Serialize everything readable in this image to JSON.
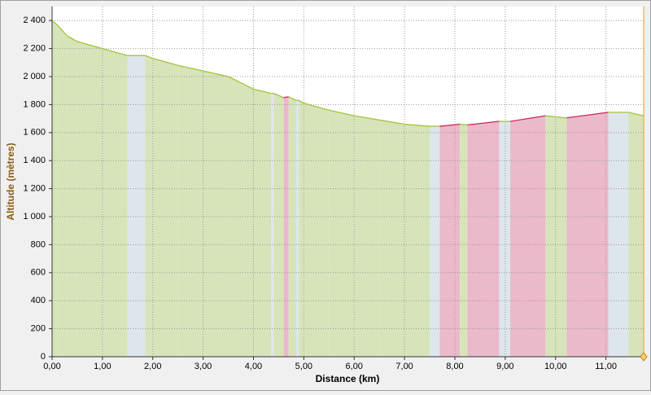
{
  "chart_data": {
    "type": "elevation",
    "x_label": "Distance (km)",
    "y_label": "Altitude (mètres)",
    "x": [
      0,
      0.1,
      0.3,
      0.5,
      1.0,
      1.5,
      1.85,
      2.0,
      2.5,
      3.0,
      3.5,
      4.0,
      4.35,
      4.4,
      4.6,
      4.7,
      4.85,
      4.9,
      5.0,
      5.5,
      6.0,
      6.5,
      7.0,
      7.5,
      7.7,
      8.1,
      8.25,
      8.88,
      9.1,
      9.8,
      10.22,
      11.05,
      11.45,
      11.74
    ],
    "y": [
      2400,
      2370,
      2290,
      2250,
      2200,
      2150,
      2150,
      2130,
      2080,
      2040,
      2000,
      1910,
      1880,
      1880,
      1850,
      1855,
      1830,
      1830,
      1810,
      1760,
      1720,
      1690,
      1660,
      1645,
      1645,
      1660,
      1655,
      1680,
      1680,
      1720,
      1705,
      1745,
      1745,
      1720
    ],
    "xlim": [
      0,
      11.75
    ],
    "ylim": [
      0,
      2500
    ],
    "xticks": [
      {
        "value": 0,
        "label": "0,00"
      },
      {
        "value": 1,
        "label": "1,00"
      },
      {
        "value": 2,
        "label": "2,00"
      },
      {
        "value": 3,
        "label": "3,00"
      },
      {
        "value": 4,
        "label": "4,00"
      },
      {
        "value": 5,
        "label": "5,00"
      },
      {
        "value": 6,
        "label": "6,00"
      },
      {
        "value": 7,
        "label": "7,00"
      },
      {
        "value": 8,
        "label": "8,00"
      },
      {
        "value": 9,
        "label": "9,00"
      },
      {
        "value": 10,
        "label": "10,00"
      },
      {
        "value": 11,
        "label": "11,00"
      }
    ],
    "yticks": [
      0,
      200,
      400,
      600,
      800,
      {
        "value": 1000,
        "label": "1 000"
      },
      {
        "value": 1200,
        "label": "1 200"
      },
      {
        "value": 1400,
        "label": "1 400"
      },
      {
        "value": 1600,
        "label": "1 600"
      },
      {
        "value": 1800,
        "label": "1 800"
      },
      {
        "value": 2000,
        "label": "2 000"
      },
      {
        "value": 2200,
        "label": "2 200"
      },
      {
        "value": 2400,
        "label": "2 400"
      }
    ],
    "grid": true,
    "colors": {
      "down_fill": "#d7e4b9",
      "up_fill": "#ebb9ca",
      "flat_fill": "#dde6ea",
      "down_line": "#a3c43a",
      "up_line": "#c8285a",
      "flat_line": "#a3c43a"
    }
  }
}
